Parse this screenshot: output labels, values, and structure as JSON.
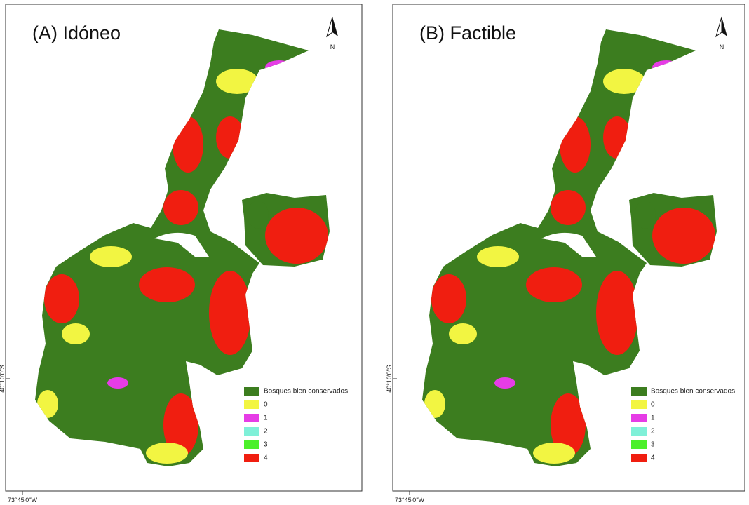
{
  "panels": [
    {
      "title": "(A) Idóneo",
      "north": "N",
      "lat_label": "40°10'0\"S",
      "lon_label": "73°45'0\"W",
      "legend": [
        {
          "label": "Bosques bien conservados",
          "color": "#3c7d1f"
        },
        {
          "label": "0",
          "color": "#f2f542"
        },
        {
          "label": "1",
          "color": "#e63ce6"
        },
        {
          "label": "2",
          "color": "#7ff0d8"
        },
        {
          "label": "3",
          "color": "#4cf02a"
        },
        {
          "label": "4",
          "color": "#f01e10"
        }
      ]
    },
    {
      "title": "(B) Factible",
      "north": "N",
      "lat_label": "40°10'0\"S",
      "lon_label": "73°45'0\"W",
      "legend": [
        {
          "label": "Bosques bien conservados",
          "color": "#3c7d1f"
        },
        {
          "label": "0",
          "color": "#f2f542"
        },
        {
          "label": "1",
          "color": "#e63ce6"
        },
        {
          "label": "2",
          "color": "#7ff0d8"
        },
        {
          "label": "3",
          "color": "#4cf02a"
        },
        {
          "label": "4",
          "color": "#f01e10"
        }
      ]
    }
  ]
}
